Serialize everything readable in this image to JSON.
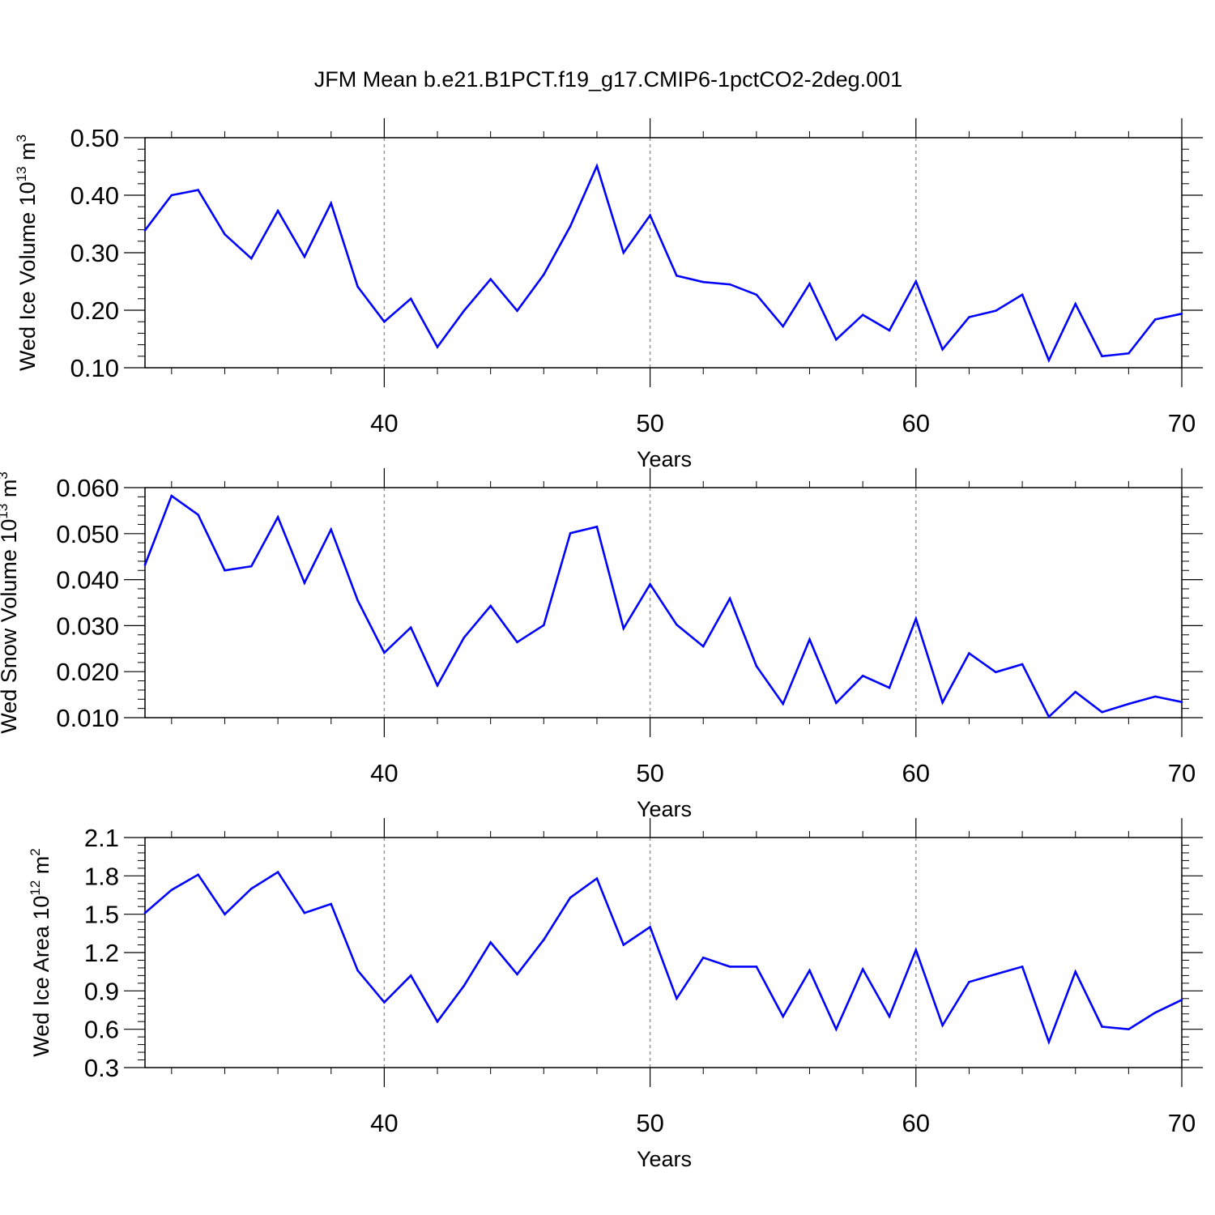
{
  "title": "JFM Mean b.e21.B1PCT.f19_g17.CMIP6-1pctCO2-2deg.001",
  "line_color": "#0000ff",
  "chart_data": [
    {
      "type": "line",
      "title": "JFM Mean b.e21.B1PCT.f19_g17.CMIP6-1pctCO2-2deg.001",
      "xlabel": "Years",
      "ylabel_text": "Wed Ice Volume 10",
      "ylabel_exp": "13",
      "ylabel_unit": "m",
      "ylabel_unit_exp": "3",
      "xlim": [
        31,
        70
      ],
      "ylim": [
        0.1,
        0.5
      ],
      "yticks": [
        0.1,
        0.2,
        0.3,
        0.4,
        0.5
      ],
      "yticklabels": [
        "0.10",
        "0.20",
        "0.30",
        "0.40",
        "0.50"
      ],
      "xticks": [
        40,
        50,
        60,
        70
      ],
      "xticklabels": [
        "40",
        "50",
        "60",
        "70"
      ],
      "x": [
        31,
        32,
        33,
        34,
        35,
        36,
        37,
        38,
        39,
        40,
        41,
        42,
        43,
        44,
        45,
        46,
        47,
        48,
        49,
        50,
        51,
        52,
        53,
        54,
        55,
        56,
        57,
        58,
        59,
        60,
        61,
        62,
        63,
        64,
        65,
        66,
        67,
        68,
        69,
        70
      ],
      "series": [
        {
          "name": "Wed Ice Volume",
          "values": [
            0.339,
            0.4,
            0.409,
            0.332,
            0.29,
            0.373,
            0.293,
            0.386,
            0.241,
            0.18,
            0.22,
            0.136,
            0.199,
            0.254,
            0.199,
            0.262,
            0.346,
            0.451,
            0.3,
            0.365,
            0.26,
            0.249,
            0.245,
            0.227,
            0.172,
            0.246,
            0.149,
            0.192,
            0.165,
            0.25,
            0.132,
            0.188,
            0.199,
            0.227,
            0.113,
            0.211,
            0.12,
            0.125,
            0.184,
            0.194
          ]
        }
      ]
    },
    {
      "type": "line",
      "xlabel": "Years",
      "ylabel_text": "Wed Snow Volume 10",
      "ylabel_exp": "13",
      "ylabel_unit": "m",
      "ylabel_unit_exp": "3",
      "xlim": [
        31,
        70
      ],
      "ylim": [
        0.01,
        0.06
      ],
      "yticks": [
        0.01,
        0.02,
        0.03,
        0.04,
        0.05,
        0.06
      ],
      "yticklabels": [
        "0.010",
        "0.020",
        "0.030",
        "0.040",
        "0.050",
        "0.060"
      ],
      "xticks": [
        40,
        50,
        60,
        70
      ],
      "xticklabels": [
        "40",
        "50",
        "60",
        "70"
      ],
      "x": [
        31,
        32,
        33,
        34,
        35,
        36,
        37,
        38,
        39,
        40,
        41,
        42,
        43,
        44,
        45,
        46,
        47,
        48,
        49,
        50,
        51,
        52,
        53,
        54,
        55,
        56,
        57,
        58,
        59,
        60,
        61,
        62,
        63,
        64,
        65,
        66,
        67,
        68,
        69,
        70
      ],
      "series": [
        {
          "name": "Wed Snow Volume",
          "values": [
            0.0432,
            0.0582,
            0.0541,
            0.042,
            0.0429,
            0.0536,
            0.0393,
            0.0509,
            0.0355,
            0.0241,
            0.0296,
            0.017,
            0.0274,
            0.0343,
            0.0264,
            0.0301,
            0.0501,
            0.0515,
            0.0294,
            0.039,
            0.0302,
            0.0255,
            0.0359,
            0.0212,
            0.013,
            0.027,
            0.0132,
            0.0191,
            0.0165,
            0.0315,
            0.0133,
            0.024,
            0.0199,
            0.0216,
            0.0102,
            0.0156,
            0.0112,
            0.013,
            0.0146,
            0.0134
          ]
        }
      ]
    },
    {
      "type": "line",
      "xlabel": "Years",
      "ylabel_text": "Wed Ice Area 10",
      "ylabel_exp": "12",
      "ylabel_unit": "m",
      "ylabel_unit_exp": "2",
      "xlim": [
        31,
        70
      ],
      "ylim": [
        0.3,
        2.1
      ],
      "yticks": [
        0.3,
        0.6,
        0.9,
        1.2,
        1.5,
        1.8,
        2.1
      ],
      "yticklabels": [
        "0.3",
        "0.6",
        "0.9",
        "1.2",
        "1.5",
        "1.8",
        "2.1"
      ],
      "xticks": [
        40,
        50,
        60,
        70
      ],
      "xticklabels": [
        "40",
        "50",
        "60",
        "70"
      ],
      "x": [
        31,
        32,
        33,
        34,
        35,
        36,
        37,
        38,
        39,
        40,
        41,
        42,
        43,
        44,
        45,
        46,
        47,
        48,
        49,
        50,
        51,
        52,
        53,
        54,
        55,
        56,
        57,
        58,
        59,
        60,
        61,
        62,
        63,
        64,
        65,
        66,
        67,
        68,
        69,
        70
      ],
      "series": [
        {
          "name": "Wed Ice Area",
          "values": [
            1.51,
            1.69,
            1.81,
            1.5,
            1.7,
            1.83,
            1.51,
            1.58,
            1.06,
            0.81,
            1.02,
            0.66,
            0.94,
            1.28,
            1.03,
            1.3,
            1.63,
            1.78,
            1.26,
            1.4,
            0.84,
            1.16,
            1.09,
            1.09,
            0.7,
            1.06,
            0.6,
            1.07,
            0.7,
            1.22,
            0.63,
            0.97,
            1.03,
            1.09,
            0.5,
            1.05,
            0.62,
            0.6,
            0.73,
            0.83
          ]
        }
      ]
    }
  ]
}
